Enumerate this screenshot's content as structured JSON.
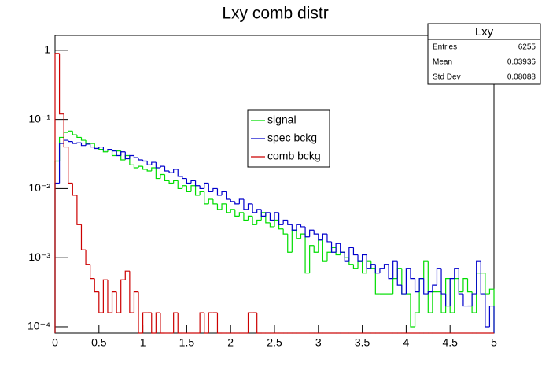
{
  "chart_data": {
    "type": "histogram",
    "title": "Lxy comb distr",
    "log_y": true,
    "bins": [
      0,
      0.05,
      0.1,
      0.15,
      0.2,
      0.25,
      0.3,
      0.35,
      0.4,
      0.45,
      0.5,
      0.55,
      0.6,
      0.65,
      0.7,
      0.75,
      0.8,
      0.85,
      0.9,
      0.95,
      1,
      1.05,
      1.1,
      1.15,
      1.2,
      1.25,
      1.3,
      1.35,
      1.4,
      1.45,
      1.5,
      1.55,
      1.6,
      1.65,
      1.7,
      1.75,
      1.8,
      1.85,
      1.9,
      1.95,
      2,
      2.05,
      2.1,
      2.15,
      2.2,
      2.25,
      2.3,
      2.35,
      2.4,
      2.45,
      2.5,
      2.55,
      2.6,
      2.65,
      2.7,
      2.75,
      2.8,
      2.85,
      2.9,
      2.95,
      3,
      3.05,
      3.1,
      3.15,
      3.2,
      3.25,
      3.3,
      3.35,
      3.4,
      3.45,
      3.5,
      3.55,
      3.6,
      3.65,
      3.7,
      3.75,
      3.8,
      3.85,
      3.9,
      3.95,
      4,
      4.05,
      4.1,
      4.15,
      4.2,
      4.25,
      4.3,
      4.35,
      4.4,
      4.45,
      4.5,
      4.55,
      4.6,
      4.65,
      4.7,
      4.75,
      4.8,
      4.85,
      4.9,
      4.95,
      5
    ],
    "series": [
      {
        "name": "signal",
        "color": "#00dd00",
        "values": [
          0.025,
          0.055,
          0.065,
          0.068,
          0.06,
          0.055,
          0.05,
          0.045,
          0.045,
          0.04,
          0.037,
          0.034,
          0.036,
          0.03,
          0.035,
          0.026,
          0.03,
          0.022,
          0.02,
          0.021,
          0.019,
          0.018,
          0.02,
          0.014,
          0.016,
          0.013,
          0.012,
          0.013,
          0.01,
          0.011,
          0.009,
          0.011,
          0.008,
          0.009,
          0.006,
          0.007,
          0.006,
          0.005,
          0.006,
          0.0045,
          0.005,
          0.004,
          0.0045,
          0.0035,
          0.004,
          0.003,
          0.0035,
          0.0045,
          0.0032,
          0.0028,
          0.0035,
          0.0026,
          0.0022,
          0.0012,
          0.0025,
          0.0019,
          0.0022,
          0.0006,
          0.0015,
          0.0012,
          0.0018,
          0.0009,
          0.0012,
          0.0014,
          0.0011,
          0.0012,
          0.001,
          0.0008,
          0.0007,
          0.0009,
          0.0006,
          0.0009,
          0.0007,
          0.0003,
          0.0003,
          0.0003,
          0.0003,
          0.0005,
          0.0007,
          0.0003,
          0.0003,
          0.0001,
          0.00016,
          0.0005,
          0.0009,
          0.00016,
          0.00032,
          0.00032,
          0.00016,
          0.0005,
          0.00016,
          0.0005,
          0.00032,
          0.0005,
          0.00032,
          0.00016,
          0.0006,
          0.0006,
          0.0003,
          0.00035
        ]
      },
      {
        "name": "spec bckg",
        "color": "#0000cc",
        "values": [
          0.012,
          0.045,
          0.05,
          0.048,
          0.045,
          0.046,
          0.042,
          0.044,
          0.04,
          0.038,
          0.04,
          0.036,
          0.037,
          0.035,
          0.03,
          0.034,
          0.027,
          0.03,
          0.028,
          0.026,
          0.025,
          0.022,
          0.024,
          0.02,
          0.021,
          0.018,
          0.017,
          0.019,
          0.015,
          0.014,
          0.012,
          0.013,
          0.011,
          0.01,
          0.012,
          0.009,
          0.01,
          0.008,
          0.009,
          0.007,
          0.0065,
          0.006,
          0.007,
          0.005,
          0.006,
          0.0045,
          0.005,
          0.004,
          0.0045,
          0.0035,
          0.0045,
          0.003,
          0.0035,
          0.003,
          0.0025,
          0.003,
          0.0028,
          0.002,
          0.0025,
          0.0022,
          0.0018,
          0.0022,
          0.0017,
          0.0012,
          0.0016,
          0.0012,
          0.0009,
          0.0014,
          0.0011,
          0.0009,
          0.0011,
          0.0007,
          0.0008,
          0.0006,
          0.0007,
          0.0008,
          0.0005,
          0.0009,
          0.0004,
          0.0003,
          0.0007,
          0.0005,
          0.00032,
          0.0005,
          0.0003,
          0.00032,
          0.0004,
          0.0007,
          0.0003,
          0.0002,
          0.0005,
          0.0007,
          0.0003,
          0.0002,
          0.0002,
          0.0003,
          0.0009,
          0.0003,
          0.0001,
          0.0002
        ]
      },
      {
        "name": "comb bckg",
        "color": "#cc0000",
        "values": [
          0.9,
          0.12,
          0.04,
          0.012,
          0.008,
          0.003,
          0.0013,
          0.0008,
          0.0005,
          0.00032,
          0.00016,
          0.00048,
          0.00016,
          0.00032,
          0.00016,
          0.00048,
          0.00064,
          0.00016,
          0.00032,
          0,
          0.00016,
          0.00016,
          0,
          0.00016,
          0,
          0,
          0,
          0.00016,
          0,
          0,
          0,
          0,
          0,
          0.00016,
          0,
          0.00016,
          0.00016,
          0,
          0,
          0,
          0,
          0,
          0,
          0,
          0.00016,
          0.00016,
          0,
          0,
          0,
          0,
          0,
          0,
          0,
          0,
          0,
          0,
          0,
          0,
          0,
          0,
          0,
          0,
          0,
          0,
          0,
          0,
          0,
          0,
          0,
          0,
          0,
          0,
          0,
          0,
          0,
          0,
          0,
          0,
          0,
          0,
          0,
          0,
          0,
          0,
          0,
          0,
          0,
          0,
          0,
          0,
          0,
          0,
          0,
          0,
          0,
          0,
          0,
          0,
          0,
          0
        ]
      }
    ],
    "xlim": [
      0,
      5
    ],
    "xticks": [
      0,
      0.5,
      1,
      1.5,
      2,
      2.5,
      3,
      3.5,
      4,
      4.5,
      5
    ],
    "ylim": [
      8.1e-05,
      1.64
    ],
    "yticks": [
      1,
      {
        "value": 0.1,
        "label": "10⁻¹"
      },
      {
        "value": 0.01,
        "label": "10⁻²"
      },
      {
        "value": 0.001,
        "label": "10⁻³"
      },
      {
        "value": 0.0001,
        "label": "10⁻⁴"
      }
    ],
    "stats": {
      "title": "Lxy",
      "rows": [
        {
          "label": "Entries",
          "value": 6255
        },
        {
          "label": "Mean",
          "value": 0.03936
        },
        {
          "label": "Std Dev",
          "value": 0.08088
        }
      ]
    }
  }
}
